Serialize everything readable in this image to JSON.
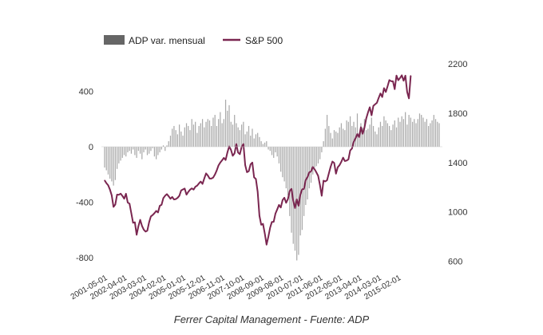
{
  "legend": {
    "bar_label": "ADP var. mensual",
    "line_label": "S&P 500"
  },
  "caption": "Ferrer Capital Management - Fuente: ADP",
  "colors": {
    "bars": "#a9a9a9",
    "bar_legend": "#666666",
    "line": "#7a2650"
  },
  "chart_data": {
    "type": "bar+line",
    "x_start": "2001-05",
    "x_end": "2015-08",
    "x_tick_labels": [
      "2001-05-01",
      "2002-04-01",
      "2003-03-01",
      "2004-02-01",
      "2005-01-01",
      "2005-12-01",
      "2006-11-01",
      "2007-10-01",
      "2008-09-01",
      "2009-08-01",
      "2010-07-01",
      "2011-06-01",
      "2012-05-01",
      "2013-04-01",
      "2014-03-01",
      "2015-02-01"
    ],
    "y_left": {
      "ticks": [
        400,
        0,
        -400,
        -800
      ],
      "ylim": [
        -820,
        440
      ]
    },
    "y_right": {
      "ticks": [
        2200,
        1800,
        1400,
        1000,
        600
      ],
      "ylim": [
        600,
        2200
      ]
    },
    "series": [
      {
        "name": "ADP var. mensual",
        "type": "bar",
        "axis": "left",
        "values": [
          -150,
          -170,
          -200,
          -230,
          -250,
          -280,
          -240,
          -160,
          -120,
          -100,
          -80,
          -60,
          -70,
          -40,
          -30,
          -50,
          -20,
          -60,
          -80,
          -30,
          -50,
          -90,
          -40,
          -20,
          -60,
          -50,
          -30,
          -10,
          -70,
          -90,
          -60,
          -40,
          -20,
          10,
          -30,
          10,
          40,
          80,
          130,
          150,
          120,
          90,
          160,
          110,
          80,
          140,
          170,
          150,
          120,
          200,
          160,
          180,
          100,
          150,
          170,
          200,
          140,
          180,
          200,
          190,
          150,
          210,
          230,
          150,
          200,
          250,
          170,
          200,
          340,
          260,
          300,
          180,
          160,
          230,
          170,
          140,
          120,
          160,
          180,
          90,
          110,
          150,
          80,
          130,
          60,
          90,
          100,
          70,
          40,
          20,
          30,
          40,
          -20,
          -30,
          -60,
          -80,
          -40,
          -70,
          -120,
          -180,
          -220,
          -250,
          -300,
          -350,
          -500,
          -620,
          -700,
          -750,
          -820,
          -780,
          -640,
          -600,
          -500,
          -420,
          -380,
          -300,
          -260,
          -200,
          -150,
          -140,
          -120,
          -90,
          -40,
          40,
          130,
          230,
          150,
          100,
          60,
          120,
          110,
          100,
          140,
          170,
          130,
          120,
          190,
          180,
          220,
          150,
          180,
          140,
          240,
          100,
          170,
          140,
          200,
          120,
          130,
          160,
          210,
          150,
          110,
          90,
          140,
          180,
          150,
          220,
          190,
          170,
          150,
          120,
          160,
          190,
          140,
          210,
          180,
          220,
          200,
          250,
          160,
          230,
          210,
          180,
          200,
          170,
          200,
          240,
          230,
          210,
          180,
          200,
          150,
          170,
          190,
          230,
          200,
          180,
          170
        ]
      },
      {
        "name": "S&P 500",
        "type": "line",
        "axis": "right",
        "values": [
          1256,
          1233,
          1216,
          1181,
          1134,
          1041,
          1060,
          1140,
          1139,
          1148,
          1130,
          1107,
          1147,
          1076,
          1067,
          990,
          912,
          916,
          815,
          885,
          936,
          887,
          856,
          841,
          848,
          916,
          964,
          975,
          990,
          1008,
          996,
          1050,
          1058,
          1112,
          1131,
          1144,
          1127,
          1107,
          1121,
          1101,
          1104,
          1114,
          1131,
          1174,
          1182,
          1189,
          1140,
          1162,
          1180,
          1191,
          1181,
          1204,
          1213,
          1231,
          1246,
          1227,
          1271,
          1312,
          1295,
          1270,
          1270,
          1278,
          1303,
          1336,
          1377,
          1400,
          1418,
          1438,
          1421,
          1482,
          1531,
          1503,
          1455,
          1474,
          1550,
          1481,
          1468,
          1527,
          1550,
          1379,
          1322,
          1330,
          1385,
          1400,
          1280,
          1267,
          1164,
          969,
          896,
          903,
          826,
          735,
          798,
          872,
          919,
          920,
          987,
          1021,
          1057,
          1036,
          1096,
          1115,
          1074,
          1104,
          1169,
          1187,
          1089,
          1031,
          1102,
          1050,
          1141,
          1183,
          1186,
          1258,
          1282,
          1321,
          1328,
          1364,
          1345,
          1320,
          1292,
          1218,
          1131,
          1253,
          1247,
          1257,
          1312,
          1366,
          1408,
          1397,
          1310,
          1362,
          1379,
          1406,
          1440,
          1412,
          1416,
          1426,
          1498,
          1514,
          1569,
          1597,
          1631,
          1606,
          1686,
          1633,
          1682,
          1757,
          1806,
          1848,
          1783,
          1859,
          1872,
          1884,
          1924,
          1960,
          1931,
          2003,
          1972,
          2018,
          2068,
          2059,
          2059,
          1995,
          2105,
          2067,
          2085,
          2107,
          2063,
          2104,
          1972,
          1920,
          2104
        ]
      }
    ]
  }
}
